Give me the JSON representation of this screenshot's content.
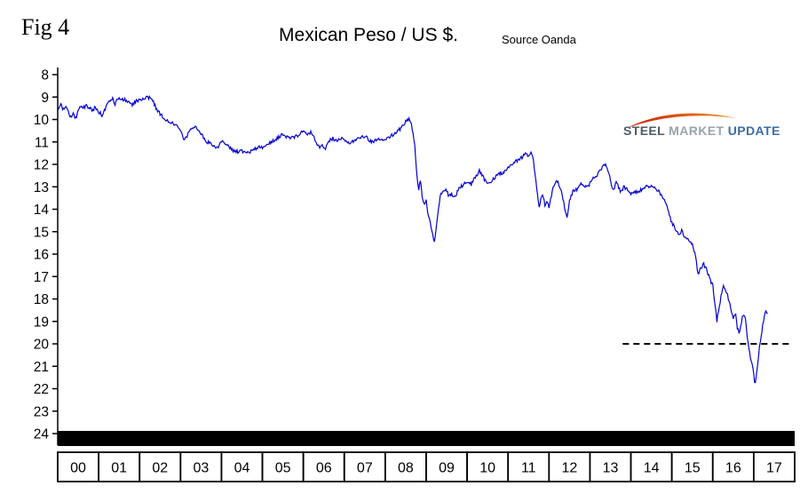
{
  "fig_label": "Fig 4",
  "title": "Mexican Peso / US $.",
  "source": "Source Oanda",
  "logo": {
    "part1": "STEEL",
    "part2": "MARKET",
    "part3": "UPDATE"
  },
  "chart_data": {
    "type": "line",
    "title": "Mexican Peso / US $.",
    "source": "Source Oanda",
    "x_labels": [
      "00",
      "01",
      "02",
      "03",
      "04",
      "05",
      "06",
      "07",
      "08",
      "09",
      "10",
      "11",
      "12",
      "13",
      "14",
      "15",
      "16",
      "17"
    ],
    "x_range": [
      2000,
      2018
    ],
    "ylim": [
      8,
      24
    ],
    "y_inverted_axis": "values increase downward (8 top, 24 bottom)",
    "y_ticks": [
      8,
      9,
      10,
      11,
      12,
      13,
      14,
      15,
      16,
      17,
      18,
      19,
      20,
      21,
      22,
      23,
      24
    ],
    "grid": false,
    "legend": false,
    "line_color": "#0000d2",
    "reference_line": {
      "value": 20,
      "from": 2013.8,
      "to": 2017.95,
      "style": "dashed",
      "color": "#000000"
    },
    "series": [
      {
        "name": "Mexican Peso per US Dollar",
        "points": [
          [
            2000.0,
            9.55
          ],
          [
            2000.08,
            9.35
          ],
          [
            2000.15,
            9.6
          ],
          [
            2000.22,
            9.45
          ],
          [
            2000.3,
            9.9
          ],
          [
            2000.38,
            9.75
          ],
          [
            2000.45,
            9.95
          ],
          [
            2000.5,
            9.6
          ],
          [
            2000.55,
            9.35
          ],
          [
            2000.62,
            9.5
          ],
          [
            2000.7,
            9.35
          ],
          [
            2000.78,
            9.5
          ],
          [
            2000.85,
            9.6
          ],
          [
            2000.92,
            9.45
          ],
          [
            2001.0,
            9.65
          ],
          [
            2001.08,
            9.8
          ],
          [
            2001.15,
            9.55
          ],
          [
            2001.25,
            9.15
          ],
          [
            2001.33,
            9.05
          ],
          [
            2001.4,
            9.3
          ],
          [
            2001.48,
            9.05
          ],
          [
            2001.55,
            9.15
          ],
          [
            2001.65,
            9.1
          ],
          [
            2001.75,
            9.25
          ],
          [
            2001.82,
            9.35
          ],
          [
            2001.9,
            9.2
          ],
          [
            2002.0,
            9.1
          ],
          [
            2002.1,
            9.05
          ],
          [
            2002.2,
            9.0
          ],
          [
            2002.3,
            9.1
          ],
          [
            2002.42,
            9.55
          ],
          [
            2002.52,
            9.8
          ],
          [
            2002.62,
            9.95
          ],
          [
            2002.72,
            10.1
          ],
          [
            2002.82,
            10.2
          ],
          [
            2002.92,
            10.3
          ],
          [
            2003.0,
            10.45
          ],
          [
            2003.08,
            10.9
          ],
          [
            2003.15,
            10.75
          ],
          [
            2003.25,
            10.45
          ],
          [
            2003.35,
            10.3
          ],
          [
            2003.45,
            10.5
          ],
          [
            2003.55,
            10.75
          ],
          [
            2003.65,
            11.0
          ],
          [
            2003.78,
            11.15
          ],
          [
            2003.9,
            11.25
          ],
          [
            2004.0,
            10.95
          ],
          [
            2004.1,
            11.05
          ],
          [
            2004.2,
            11.25
          ],
          [
            2004.3,
            11.4
          ],
          [
            2004.42,
            11.45
          ],
          [
            2004.55,
            11.4
          ],
          [
            2004.68,
            11.45
          ],
          [
            2004.8,
            11.35
          ],
          [
            2004.9,
            11.2
          ],
          [
            2005.0,
            11.25
          ],
          [
            2005.1,
            11.1
          ],
          [
            2005.2,
            11.05
          ],
          [
            2005.3,
            10.9
          ],
          [
            2005.4,
            10.8
          ],
          [
            2005.5,
            10.65
          ],
          [
            2005.6,
            10.8
          ],
          [
            2005.7,
            10.85
          ],
          [
            2005.8,
            10.75
          ],
          [
            2005.9,
            10.68
          ],
          [
            2006.0,
            10.5
          ],
          [
            2006.1,
            10.62
          ],
          [
            2006.2,
            10.55
          ],
          [
            2006.3,
            11.0
          ],
          [
            2006.4,
            11.3
          ],
          [
            2006.47,
            11.15
          ],
          [
            2006.53,
            11.35
          ],
          [
            2006.62,
            10.95
          ],
          [
            2006.72,
            10.85
          ],
          [
            2006.82,
            10.95
          ],
          [
            2006.92,
            10.82
          ],
          [
            2007.0,
            10.9
          ],
          [
            2007.1,
            11.05
          ],
          [
            2007.2,
            11.0
          ],
          [
            2007.3,
            10.9
          ],
          [
            2007.42,
            10.78
          ],
          [
            2007.55,
            10.82
          ],
          [
            2007.65,
            11.0
          ],
          [
            2007.75,
            10.95
          ],
          [
            2007.85,
            10.85
          ],
          [
            2007.95,
            10.88
          ],
          [
            2008.05,
            10.8
          ],
          [
            2008.15,
            10.72
          ],
          [
            2008.25,
            10.6
          ],
          [
            2008.35,
            10.45
          ],
          [
            2008.45,
            10.25
          ],
          [
            2008.52,
            10.05
          ],
          [
            2008.58,
            10.0
          ],
          [
            2008.65,
            10.3
          ],
          [
            2008.72,
            11.2
          ],
          [
            2008.78,
            12.6
          ],
          [
            2008.82,
            13.1
          ],
          [
            2008.86,
            12.7
          ],
          [
            2008.9,
            13.4
          ],
          [
            2008.95,
            13.8
          ],
          [
            2009.0,
            13.6
          ],
          [
            2009.05,
            14.3
          ],
          [
            2009.1,
            14.6
          ],
          [
            2009.15,
            15.1
          ],
          [
            2009.2,
            15.5
          ],
          [
            2009.25,
            14.7
          ],
          [
            2009.3,
            14.0
          ],
          [
            2009.35,
            13.3
          ],
          [
            2009.42,
            13.2
          ],
          [
            2009.5,
            13.15
          ],
          [
            2009.55,
            13.4
          ],
          [
            2009.62,
            13.3
          ],
          [
            2009.7,
            13.45
          ],
          [
            2009.8,
            13.1
          ],
          [
            2009.9,
            12.9
          ],
          [
            2010.0,
            12.8
          ],
          [
            2010.1,
            12.9
          ],
          [
            2010.2,
            12.55
          ],
          [
            2010.3,
            12.3
          ],
          [
            2010.4,
            12.6
          ],
          [
            2010.5,
            12.85
          ],
          [
            2010.6,
            12.7
          ],
          [
            2010.7,
            12.55
          ],
          [
            2010.8,
            12.4
          ],
          [
            2010.9,
            12.35
          ],
          [
            2011.0,
            12.1
          ],
          [
            2011.1,
            12.0
          ],
          [
            2011.2,
            11.85
          ],
          [
            2011.3,
            11.75
          ],
          [
            2011.4,
            11.6
          ],
          [
            2011.45,
            11.5
          ],
          [
            2011.5,
            11.65
          ],
          [
            2011.55,
            11.45
          ],
          [
            2011.6,
            11.6
          ],
          [
            2011.66,
            12.4
          ],
          [
            2011.72,
            13.3
          ],
          [
            2011.76,
            13.9
          ],
          [
            2011.8,
            13.5
          ],
          [
            2011.85,
            13.3
          ],
          [
            2011.9,
            13.8
          ],
          [
            2011.95,
            13.6
          ],
          [
            2012.0,
            13.9
          ],
          [
            2012.06,
            13.4
          ],
          [
            2012.12,
            12.9
          ],
          [
            2012.2,
            12.75
          ],
          [
            2012.3,
            13.2
          ],
          [
            2012.38,
            13.9
          ],
          [
            2012.44,
            14.3
          ],
          [
            2012.5,
            13.65
          ],
          [
            2012.58,
            13.2
          ],
          [
            2012.68,
            13.1
          ],
          [
            2012.78,
            12.9
          ],
          [
            2012.88,
            13.0
          ],
          [
            2012.95,
            12.95
          ],
          [
            2013.0,
            12.85
          ],
          [
            2013.08,
            12.65
          ],
          [
            2013.15,
            12.5
          ],
          [
            2013.25,
            12.3
          ],
          [
            2013.32,
            12.1
          ],
          [
            2013.38,
            11.95
          ],
          [
            2013.45,
            12.3
          ],
          [
            2013.52,
            12.9
          ],
          [
            2013.57,
            13.2
          ],
          [
            2013.63,
            12.8
          ],
          [
            2013.7,
            13.0
          ],
          [
            2013.76,
            13.25
          ],
          [
            2013.82,
            13.0
          ],
          [
            2013.9,
            13.1
          ],
          [
            2014.0,
            13.3
          ],
          [
            2014.1,
            13.25
          ],
          [
            2014.2,
            13.2
          ],
          [
            2014.3,
            13.05
          ],
          [
            2014.4,
            12.95
          ],
          [
            2014.5,
            13.0
          ],
          [
            2014.6,
            13.1
          ],
          [
            2014.7,
            13.25
          ],
          [
            2014.8,
            13.5
          ],
          [
            2014.9,
            14.0
          ],
          [
            2015.0,
            14.6
          ],
          [
            2015.06,
            14.8
          ],
          [
            2015.12,
            15.0
          ],
          [
            2015.18,
            15.15
          ],
          [
            2015.24,
            14.9
          ],
          [
            2015.3,
            15.2
          ],
          [
            2015.4,
            15.4
          ],
          [
            2015.5,
            15.6
          ],
          [
            2015.58,
            16.1
          ],
          [
            2015.64,
            16.9
          ],
          [
            2015.7,
            16.6
          ],
          [
            2015.78,
            16.45
          ],
          [
            2015.85,
            16.7
          ],
          [
            2015.92,
            17.1
          ],
          [
            2016.0,
            17.4
          ],
          [
            2016.05,
            18.2
          ],
          [
            2016.1,
            19.0
          ],
          [
            2016.15,
            18.4
          ],
          [
            2016.2,
            17.9
          ],
          [
            2016.25,
            17.4
          ],
          [
            2016.32,
            17.6
          ],
          [
            2016.4,
            18.1
          ],
          [
            2016.45,
            18.5
          ],
          [
            2016.5,
            18.9
          ],
          [
            2016.55,
            18.6
          ],
          [
            2016.6,
            19.3
          ],
          [
            2016.65,
            19.5
          ],
          [
            2016.7,
            19.0
          ],
          [
            2016.75,
            18.6
          ],
          [
            2016.8,
            18.9
          ],
          [
            2016.85,
            19.8
          ],
          [
            2016.9,
            20.4
          ],
          [
            2016.95,
            20.8
          ],
          [
            2017.0,
            21.3
          ],
          [
            2017.03,
            21.9
          ],
          [
            2017.06,
            21.4
          ],
          [
            2017.1,
            20.8
          ],
          [
            2017.14,
            20.2
          ],
          [
            2017.18,
            19.7
          ],
          [
            2017.22,
            19.1
          ],
          [
            2017.26,
            18.75
          ],
          [
            2017.3,
            18.6
          ],
          [
            2017.35,
            18.7
          ]
        ]
      }
    ]
  }
}
